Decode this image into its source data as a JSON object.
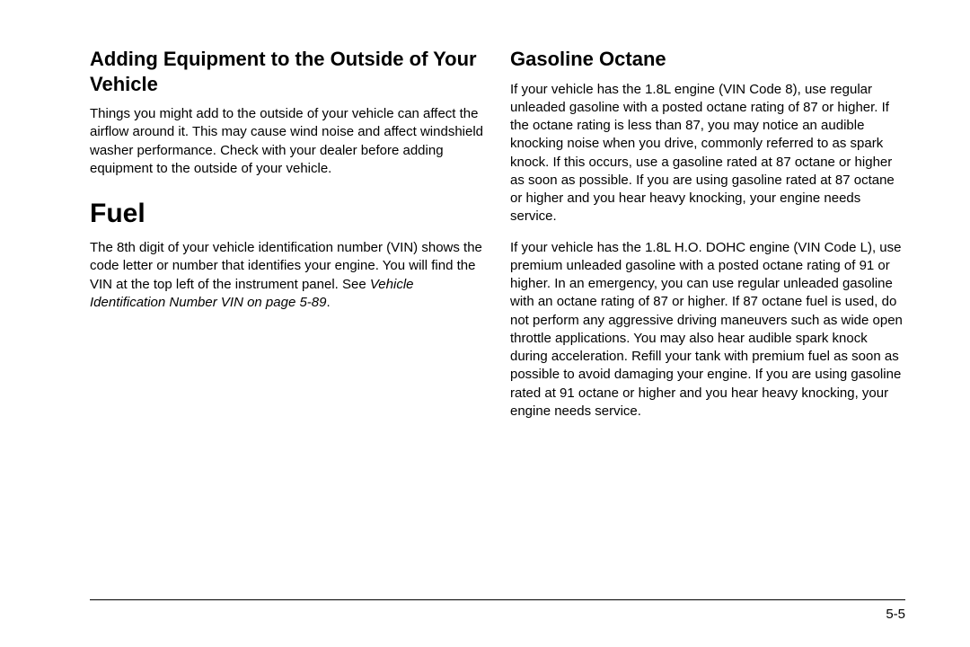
{
  "left": {
    "heading1": "Adding Equipment to the Outside of Your Vehicle",
    "para1": "Things you might add to the outside of your vehicle can affect the airflow around it. This may cause wind noise and affect windshield washer performance. Check with your dealer before adding equipment to the outside of your vehicle.",
    "heading2": "Fuel",
    "para2a": "The 8th digit of your vehicle identification number (VIN) shows the code letter or number that identifies your engine. You will find the VIN at the top left of the instrument panel. See ",
    "para2b_italic": "Vehicle Identification Number VIN on page 5-89",
    "para2c": "."
  },
  "right": {
    "heading1": "Gasoline Octane",
    "para1": "If your vehicle has the 1.8L engine (VIN Code 8), use regular unleaded gasoline with a posted octane rating of 87 or higher. If the octane rating is less than 87, you may notice an audible knocking noise when you drive, commonly referred to as spark knock. If this occurs, use a gasoline rated at 87 octane or higher as soon as possible. If you are using gasoline rated at 87 octane or higher and you hear heavy knocking, your engine needs service.",
    "para2": "If your vehicle has the 1.8L H.O. DOHC engine (VIN Code L), use premium unleaded gasoline with a posted octane rating of 91 or higher. In an emergency, you can use regular unleaded gasoline with an octane rating of 87 or higher. If 87 octane fuel is used, do not perform any aggressive driving maneuvers such as wide open throttle applications. You may also hear audible spark knock during acceleration. Refill your tank with premium fuel as soon as possible to avoid damaging your engine. If you are using gasoline rated at 91 octane or higher and you hear heavy knocking, your engine needs service."
  },
  "page_number": "5-5"
}
